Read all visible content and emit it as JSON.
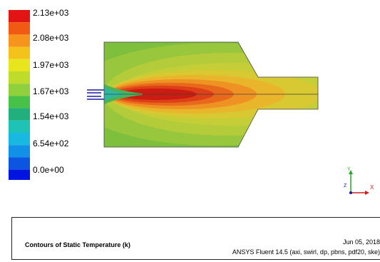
{
  "legend": {
    "labels": [
      "2.13e+03",
      "2.08e+03",
      "1.97e+03",
      "1.67e+03",
      "1.54e+03",
      "6.54e+02",
      "0.0e+00"
    ],
    "colors": [
      "#e31414",
      "#f05a12",
      "#f7941d",
      "#f5c21b",
      "#e7e51d",
      "#c0dc2a",
      "#8fd03c",
      "#48c148",
      "#21b07d",
      "#1fc3b5",
      "#18b8e0",
      "#1090e6",
      "#0b55e0",
      "#0014e0"
    ]
  },
  "axes": {
    "x_label": "X",
    "y_label": "Y",
    "z_label": "Z"
  },
  "info": {
    "title": "Contours of Static Temperature (k)",
    "date": "Jun 05, 2018",
    "solver": "ANSYS Fluent 14.5 (axi, swirl, dp, pbns, pdf20, ske)"
  }
}
